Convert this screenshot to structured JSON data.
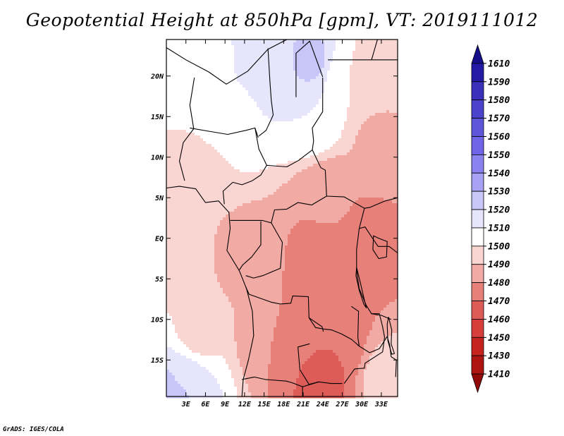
{
  "chart_data": {
    "type": "heatmap",
    "title": "Geopotential Height at 850hPa [gpm], VT: 2019111012",
    "variable": "Geopotential Height",
    "level": "850hPa",
    "units": "gpm",
    "valid_time": "2019111012",
    "lon_range": [
      0,
      35.5
    ],
    "lat_range": [
      -19.5,
      24.5
    ],
    "x_ticks": [
      {
        "value": 3,
        "label": "3E"
      },
      {
        "value": 6,
        "label": "6E"
      },
      {
        "value": 9,
        "label": "9E"
      },
      {
        "value": 12,
        "label": "12E"
      },
      {
        "value": 15,
        "label": "15E"
      },
      {
        "value": 18,
        "label": "18E"
      },
      {
        "value": 21,
        "label": "21E"
      },
      {
        "value": 24,
        "label": "24E"
      },
      {
        "value": 27,
        "label": "27E"
      },
      {
        "value": 30,
        "label": "30E"
      },
      {
        "value": 33,
        "label": "33E"
      }
    ],
    "y_ticks": [
      {
        "value": 20,
        "label": "20N"
      },
      {
        "value": 15,
        "label": "15N"
      },
      {
        "value": 10,
        "label": "10N"
      },
      {
        "value": 5,
        "label": "5N"
      },
      {
        "value": 0,
        "label": "EQ"
      },
      {
        "value": -5,
        "label": "5S"
      },
      {
        "value": -10,
        "label": "10S"
      },
      {
        "value": -15,
        "label": "15S"
      }
    ],
    "colorbar": {
      "levels": [
        1610,
        1590,
        1580,
        1570,
        1560,
        1550,
        1540,
        1530,
        1520,
        1510,
        1500,
        1490,
        1480,
        1470,
        1460,
        1450,
        1430,
        1410
      ],
      "colors": [
        "#160f8c",
        "#231aa6",
        "#3a30bb",
        "#4b43cc",
        "#5d56da",
        "#7065e8",
        "#8a82ef",
        "#a7a2f4",
        "#c8c5f8",
        "#e6e5fb",
        "#ffffff",
        "#fad6d2",
        "#f2aaa4",
        "#e8807a",
        "#de5c57",
        "#d53e3a",
        "#c6231f",
        "#ae1410",
        "#920a08"
      ]
    },
    "field_samples": [
      {
        "lon": 4,
        "lat": 22,
        "value": 1505
      },
      {
        "lon": 17,
        "lat": 22,
        "value": 1518
      },
      {
        "lon": 22,
        "lat": 22,
        "value": 1522
      },
      {
        "lon": 28,
        "lat": 20,
        "value": 1500
      },
      {
        "lon": 33,
        "lat": 20,
        "value": 1492
      },
      {
        "lon": 10,
        "lat": 15,
        "value": 1509
      },
      {
        "lon": 22,
        "lat": 15,
        "value": 1510
      },
      {
        "lon": 33,
        "lat": 12,
        "value": 1488
      },
      {
        "lon": 5,
        "lat": 8,
        "value": 1496
      },
      {
        "lon": 25,
        "lat": 5,
        "value": 1481
      },
      {
        "lon": 3,
        "lat": -2,
        "value": 1494
      },
      {
        "lon": 12,
        "lat": -2,
        "value": 1485
      },
      {
        "lon": 24,
        "lat": -3,
        "value": 1474
      },
      {
        "lon": 31,
        "lat": 0,
        "value": 1476
      },
      {
        "lon": 5,
        "lat": -12,
        "value": 1497
      },
      {
        "lon": 16,
        "lat": -12,
        "value": 1480
      },
      {
        "lon": 25,
        "lat": -14,
        "value": 1470
      },
      {
        "lon": 24,
        "lat": -18,
        "value": 1468
      },
      {
        "lon": 3,
        "lat": -17,
        "value": 1513
      },
      {
        "lon": 1,
        "lat": -19,
        "value": 1528
      },
      {
        "lon": 34,
        "lat": -18,
        "value": 1496
      }
    ]
  },
  "footer": {
    "credit": "GrADS: IGES/COLA"
  }
}
